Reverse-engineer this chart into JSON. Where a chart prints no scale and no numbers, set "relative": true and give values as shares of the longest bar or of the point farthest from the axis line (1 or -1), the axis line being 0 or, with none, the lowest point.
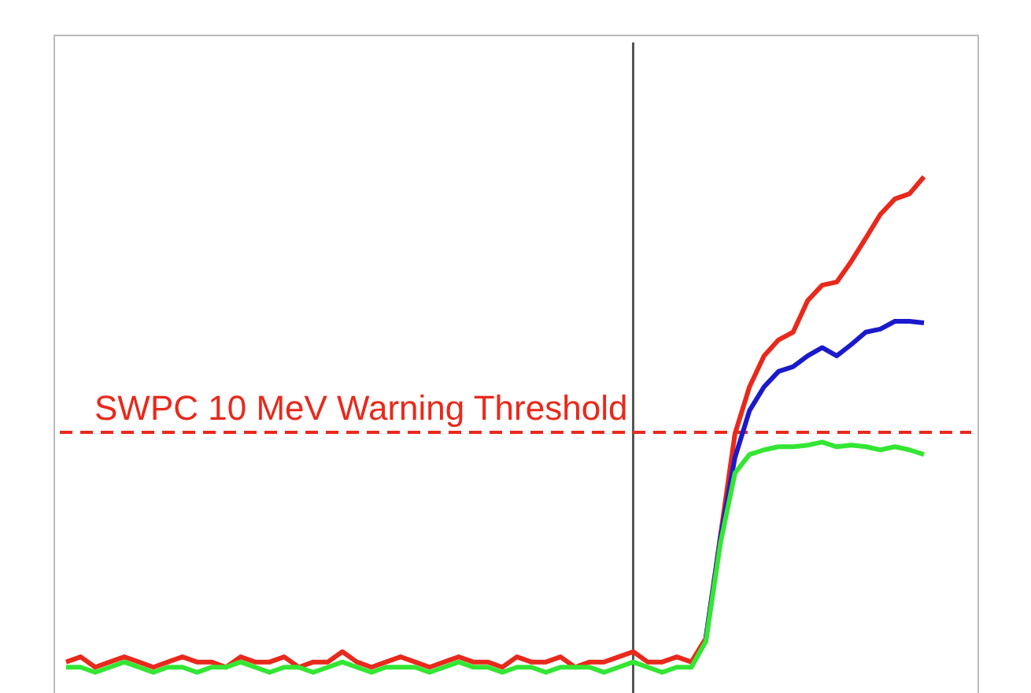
{
  "chart_data": {
    "type": "line",
    "relative": true,
    "categories": [
      null,
      null,
      null,
      null,
      null,
      null,
      null,
      null,
      null,
      null,
      null,
      null,
      null,
      null,
      null,
      null,
      null,
      null,
      null,
      null,
      null,
      null,
      null,
      null,
      null,
      null,
      null,
      null,
      null,
      null,
      null,
      null,
      null,
      null,
      null,
      null,
      null,
      null,
      null,
      null,
      null,
      null,
      null,
      null,
      null,
      null,
      null,
      null,
      null,
      null,
      null,
      null,
      null,
      null,
      null,
      null,
      null,
      null,
      null,
      null
    ],
    "series": [
      {
        "color": "#e8291c",
        "values": [
          0.06,
          0.07,
          0.05,
          0.06,
          0.07,
          0.06,
          0.05,
          0.06,
          0.07,
          0.06,
          0.06,
          0.05,
          0.07,
          0.06,
          0.06,
          0.07,
          0.05,
          0.06,
          0.06,
          0.08,
          0.06,
          0.05,
          0.06,
          0.07,
          0.06,
          0.05,
          0.06,
          0.07,
          0.06,
          0.06,
          0.05,
          0.07,
          0.06,
          0.06,
          0.07,
          0.05,
          0.06,
          0.06,
          0.07,
          0.08,
          0.06,
          0.06,
          0.07,
          0.06,
          0.106,
          0.304,
          0.502,
          0.593,
          0.653,
          0.684,
          0.699,
          0.76,
          0.79,
          0.796,
          0.836,
          0.881,
          0.927,
          0.957,
          0.967,
          1
        ]
      },
      {
        "color": "#1a1acc",
        "values": [
          null,
          null,
          null,
          null,
          null,
          null,
          null,
          null,
          null,
          null,
          null,
          null,
          null,
          null,
          null,
          null,
          null,
          null,
          null,
          null,
          null,
          null,
          null,
          null,
          null,
          null,
          null,
          null,
          null,
          null,
          null,
          null,
          null,
          null,
          null,
          null,
          null,
          null,
          null,
          null,
          null,
          null,
          null,
          null,
          0.106,
          0.3,
          0.456,
          0.547,
          0.593,
          0.623,
          0.632,
          0.653,
          0.669,
          0.653,
          0.675,
          0.699,
          0.705,
          0.72,
          0.72,
          0.717
        ]
      },
      {
        "color": "#33e633",
        "values": [
          0.05,
          0.05,
          0.04,
          0.05,
          0.06,
          0.05,
          0.04,
          0.05,
          0.05,
          0.04,
          0.05,
          0.05,
          0.06,
          0.05,
          0.04,
          0.05,
          0.05,
          0.04,
          0.05,
          0.06,
          0.05,
          0.04,
          0.05,
          0.05,
          0.05,
          0.04,
          0.05,
          0.06,
          0.05,
          0.05,
          0.04,
          0.05,
          0.05,
          0.04,
          0.05,
          0.05,
          0.05,
          0.04,
          0.05,
          0.06,
          0.05,
          0.04,
          0.05,
          0.05,
          0.1,
          0.29,
          0.426,
          0.462,
          0.471,
          0.477,
          0.477,
          0.48,
          0.486,
          0.477,
          0.48,
          0.477,
          0.471,
          0.477,
          0.471,
          0.462
        ]
      }
    ],
    "ref_lines": [
      {
        "axis": "y",
        "value": 0.505,
        "label": "SWPC 10 MeV Warning Threshold",
        "color": "#e8291c",
        "line_style": "dashed"
      }
    ]
  }
}
